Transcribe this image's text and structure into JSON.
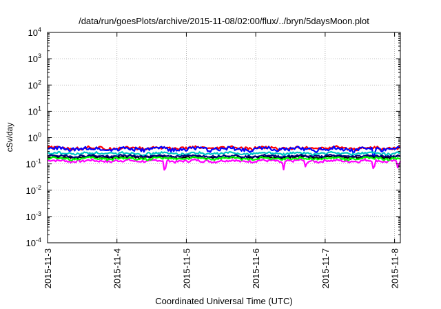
{
  "chart_data": {
    "type": "line",
    "title": "/data/run/goesPlots/archive/2015-11-08/02:00/flux/../bryn/5daysMoon.plot",
    "xlabel": "Coordinated Universal Time (UTC)",
    "ylabel": "cSv/day",
    "y_scale": "log",
    "ylim": [
      0.0001,
      10000
    ],
    "y_ticks": [
      {
        "value": 0.0001,
        "base": "10",
        "exp": "-4"
      },
      {
        "value": 0.001,
        "base": "10",
        "exp": "-3"
      },
      {
        "value": 0.01,
        "base": "10",
        "exp": "-2"
      },
      {
        "value": 0.1,
        "base": "10",
        "exp": "-1"
      },
      {
        "value": 1,
        "base": "10",
        "exp": "0"
      },
      {
        "value": 10,
        "base": "10",
        "exp": "1"
      },
      {
        "value": 100,
        "base": "10",
        "exp": "2"
      },
      {
        "value": 1000,
        "base": "10",
        "exp": "3"
      },
      {
        "value": 10000,
        "base": "10",
        "exp": "4"
      }
    ],
    "xlim": [
      "2015-11-03",
      "2015-11-08 02:00"
    ],
    "x_ticks": [
      "2015-11-3",
      "2015-11-4",
      "2015-11-5",
      "2015-11-6",
      "2015-11-7",
      "2015-11-8"
    ],
    "grid": true,
    "legend": "none",
    "series": [
      {
        "color": "#ff00ff",
        "base": 0.13,
        "spread": 0.016,
        "dips": [
          {
            "day": 1.69,
            "value": 0.022
          },
          {
            "day": 3.4,
            "value": 0.055
          },
          {
            "day": 3.72,
            "value": 0.065
          },
          {
            "day": 4.7,
            "value": 0.04
          },
          {
            "day": 5.05,
            "value": 0.055
          }
        ]
      },
      {
        "color": "#ff0000",
        "base": 0.4,
        "spread": 0.06,
        "dips": []
      },
      {
        "color": "#0000ff",
        "base": 0.37,
        "spread": 0.07,
        "dips": [
          {
            "day": 4.7,
            "value": 0.1
          }
        ]
      },
      {
        "color": "#00c8c8",
        "base": 0.25,
        "spread": 0.03,
        "dips": []
      },
      {
        "color": "#000000",
        "base": 0.18,
        "spread": 0.02,
        "dips": []
      },
      {
        "color": "#000080",
        "base": 0.2,
        "spread": 0.02,
        "dips": []
      },
      {
        "color": "#00ff00",
        "base": 0.16,
        "spread": 0.02,
        "dips": []
      }
    ]
  }
}
